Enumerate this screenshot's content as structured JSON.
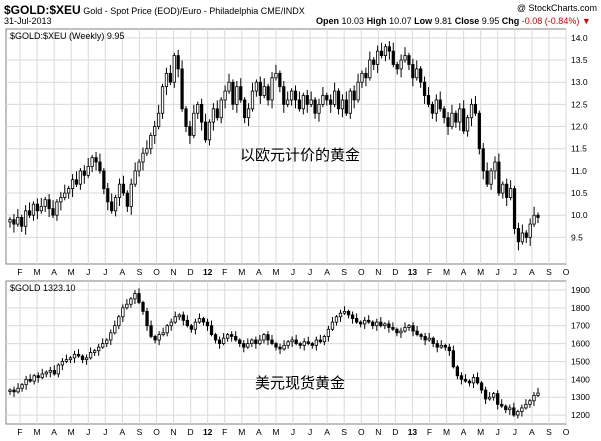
{
  "header": {
    "symbol": "$GOLD:$XEU",
    "description": "Gold - Spot Price (EOD)/Euro - Philadelphia",
    "exchange": "CME/INDX",
    "date": "31-Jul-2013",
    "watermark": "@ StockCharts.com",
    "quote": {
      "open_label": "Open",
      "open": "10.03",
      "high_label": "High",
      "high": "10.07",
      "low_label": "Low",
      "low": "9.81",
      "close_label": "Close",
      "close": "9.95",
      "chg_label": "Chg",
      "chg": "-0.08 (-0.84%)"
    }
  },
  "colors": {
    "up": "#ffffff",
    "down": "#000000",
    "grid": "#d9d9d9",
    "frame": "#808080",
    "chg": "#cc0000"
  },
  "x_axis": {
    "labels": [
      "F",
      "M",
      "A",
      "M",
      "J",
      "J",
      "A",
      "S",
      "O",
      "N",
      "D",
      "12",
      "F",
      "M",
      "A",
      "M",
      "J",
      "J",
      "A",
      "S",
      "O",
      "N",
      "D",
      "13",
      "F",
      "M",
      "A",
      "M",
      "J",
      "J",
      "A",
      "S",
      "O"
    ]
  },
  "chart_data": [
    {
      "type": "candlestick",
      "legend": "$GOLD:$XEU (Weekly) 9.95",
      "annotation": "以欧元计价的黄金",
      "ylim": [
        8.9,
        14.2
      ],
      "yticks": [
        9.5,
        10.0,
        10.5,
        11.0,
        11.5,
        12.0,
        12.5,
        13.0,
        13.5,
        14.0
      ],
      "ytick_labels": [
        "9.5",
        "10.0",
        "10.5",
        "11.0",
        "11.5",
        "12.0",
        "12.5",
        "13.0",
        "13.5",
        "14.0"
      ],
      "closes": [
        9.9,
        9.8,
        9.95,
        9.75,
        10.1,
        10.0,
        10.25,
        10.1,
        10.2,
        10.35,
        10.15,
        10.0,
        10.3,
        10.4,
        10.5,
        10.6,
        10.8,
        10.7,
        11.0,
        10.9,
        11.1,
        11.3,
        11.2,
        11.0,
        10.6,
        10.3,
        10.1,
        10.4,
        10.7,
        10.5,
        10.2,
        10.7,
        11.0,
        11.2,
        11.4,
        11.5,
        11.8,
        12.0,
        12.3,
        12.9,
        13.2,
        13.0,
        13.6,
        13.3,
        12.4,
        12.0,
        11.8,
        12.3,
        12.5,
        12.1,
        11.7,
        12.1,
        12.4,
        12.2,
        12.6,
        12.8,
        13.0,
        12.5,
        12.9,
        12.6,
        12.2,
        12.4,
        12.8,
        13.0,
        12.7,
        12.9,
        12.6,
        13.1,
        13.2,
        12.9,
        12.5,
        12.6,
        12.8,
        12.6,
        12.4,
        12.7,
        12.5,
        12.6,
        12.3,
        12.5,
        12.7,
        12.6,
        12.5,
        12.8,
        12.4,
        12.6,
        12.3,
        12.8,
        12.6,
        13.0,
        13.2,
        13.1,
        13.5,
        13.4,
        13.7,
        13.6,
        13.8,
        13.7,
        13.4,
        13.3,
        13.5,
        13.6,
        13.4,
        13.1,
        13.3,
        13.0,
        12.7,
        12.5,
        12.3,
        12.6,
        12.4,
        12.2,
        12.0,
        12.3,
        12.1,
        12.4,
        11.9,
        12.2,
        12.5,
        12.3,
        11.5,
        11.0,
        10.7,
        11.0,
        11.2,
        10.5,
        10.7,
        10.4,
        10.6,
        9.7,
        9.4,
        9.6,
        9.5,
        9.8,
        10.0,
        9.95
      ]
    },
    {
      "type": "candlestick",
      "legend": "$GOLD 1323.10",
      "annotation": "美元现货黄金",
      "ylim": [
        1150,
        1950
      ],
      "yticks": [
        1200,
        1300,
        1400,
        1500,
        1600,
        1700,
        1800,
        1900
      ],
      "ytick_labels": [
        "1200",
        "1300",
        "1400",
        "1500",
        "1600",
        "1700",
        "1800",
        "1900"
      ],
      "closes": [
        1340,
        1330,
        1350,
        1370,
        1400,
        1390,
        1420,
        1410,
        1430,
        1440,
        1450,
        1430,
        1480,
        1500,
        1510,
        1520,
        1540,
        1530,
        1510,
        1520,
        1550,
        1560,
        1580,
        1600,
        1620,
        1660,
        1700,
        1750,
        1800,
        1820,
        1850,
        1880,
        1830,
        1780,
        1700,
        1640,
        1620,
        1650,
        1660,
        1700,
        1720,
        1750,
        1760,
        1730,
        1700,
        1680,
        1720,
        1740,
        1720,
        1700,
        1650,
        1620,
        1600,
        1630,
        1650,
        1640,
        1620,
        1600,
        1580,
        1600,
        1620,
        1600,
        1620,
        1650,
        1620,
        1600,
        1580,
        1570,
        1590,
        1610,
        1620,
        1600,
        1590,
        1610,
        1600,
        1590,
        1620,
        1610,
        1640,
        1680,
        1720,
        1750,
        1770,
        1780,
        1760,
        1740,
        1720,
        1710,
        1730,
        1720,
        1700,
        1720,
        1700,
        1710,
        1690,
        1680,
        1660,
        1670,
        1690,
        1700,
        1670,
        1650,
        1640,
        1620,
        1630,
        1600,
        1580,
        1590,
        1580,
        1560,
        1470,
        1420,
        1400,
        1390,
        1380,
        1410,
        1380,
        1340,
        1290,
        1300,
        1320,
        1260,
        1250,
        1230,
        1240,
        1200,
        1220,
        1240,
        1260,
        1280,
        1310,
        1323
      ]
    }
  ]
}
